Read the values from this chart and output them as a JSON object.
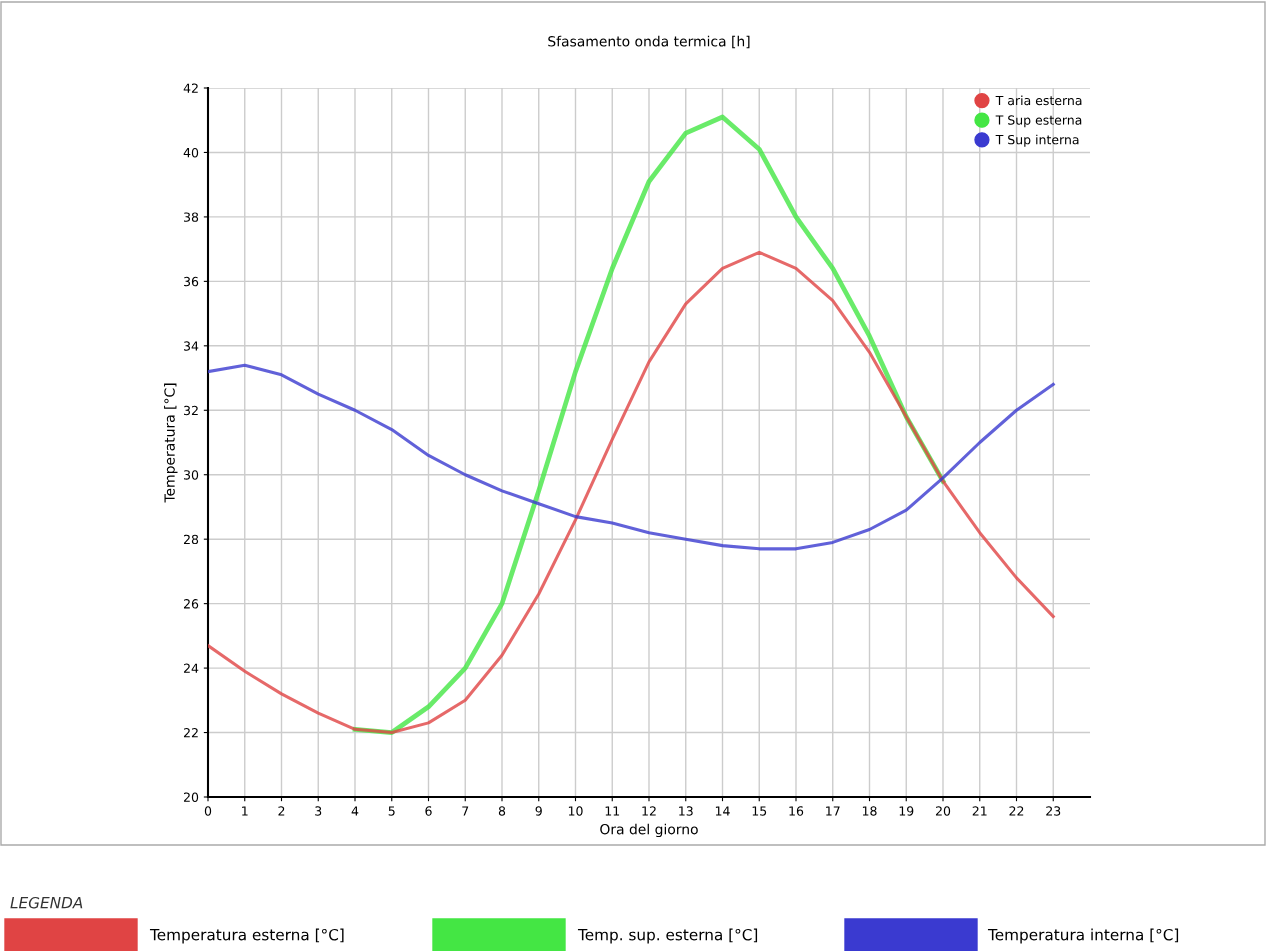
{
  "chart_data": {
    "type": "line",
    "title": "Sfasamento onda termica [h]",
    "xlabel": "Ora del giorno",
    "ylabel": "Temperatura [°C]",
    "x": [
      0,
      1,
      2,
      3,
      4,
      5,
      6,
      7,
      8,
      9,
      10,
      11,
      12,
      13,
      14,
      15,
      16,
      17,
      18,
      19,
      20,
      21,
      22,
      23
    ],
    "series": [
      {
        "name": "T Sup esterna",
        "color": "#44e644",
        "values": [
          null,
          null,
          null,
          null,
          22.1,
          22.0,
          22.8,
          24.0,
          26.0,
          29.5,
          33.2,
          36.4,
          39.1,
          40.6,
          41.1,
          40.1,
          38.0,
          36.4,
          34.3,
          31.8,
          29.8,
          null,
          null,
          null
        ]
      },
      {
        "name": "T aria esterna",
        "color": "#e04444",
        "values": [
          24.7,
          23.9,
          23.2,
          22.6,
          22.1,
          22.0,
          22.3,
          23.0,
          24.4,
          26.3,
          28.6,
          31.1,
          33.5,
          35.3,
          36.4,
          36.9,
          36.4,
          35.4,
          33.8,
          31.8,
          29.8,
          28.2,
          26.8,
          25.6
        ]
      },
      {
        "name": "T Sup interna",
        "color": "#3a3ad0",
        "values": [
          33.2,
          33.4,
          33.1,
          32.5,
          32.0,
          31.4,
          30.6,
          30.0,
          29.5,
          29.1,
          28.7,
          28.5,
          28.2,
          28.0,
          27.8,
          27.7,
          27.7,
          27.9,
          28.3,
          28.9,
          29.9,
          31.0,
          32.0,
          32.8
        ]
      }
    ],
    "xlim": [
      0,
      24
    ],
    "xticks": [
      0,
      1,
      2,
      3,
      4,
      5,
      6,
      7,
      8,
      9,
      10,
      11,
      12,
      13,
      14,
      15,
      16,
      17,
      18,
      19,
      20,
      21,
      22,
      23
    ],
    "ylim": [
      20,
      42
    ],
    "yticks": [
      20,
      22,
      24,
      26,
      28,
      30,
      32,
      34,
      36,
      38,
      40,
      42
    ],
    "grid": true,
    "legend": "top right",
    "annotations": [
      "LEGENDA",
      "Temperatura esterna [°C]",
      "Temp. sup. esterna [°C]",
      "Temperatura interna [°C]"
    ]
  }
}
